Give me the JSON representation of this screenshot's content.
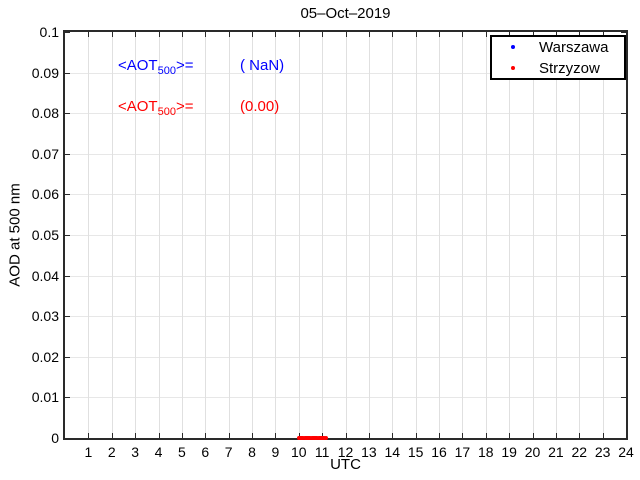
{
  "chart_data": {
    "type": "scatter",
    "title": "05–Oct–2019",
    "xlabel": "UTC",
    "ylabel": "AOD at 500 nm",
    "xlim": [
      0,
      24
    ],
    "ylim": [
      0,
      0.1
    ],
    "xticks": [
      1,
      2,
      3,
      4,
      5,
      6,
      7,
      8,
      9,
      10,
      11,
      12,
      13,
      14,
      15,
      16,
      17,
      18,
      19,
      20,
      21,
      22,
      23,
      24
    ],
    "yticks": [
      0,
      0.01,
      0.02,
      0.03,
      0.04,
      0.05,
      0.06,
      0.07,
      0.08,
      0.09,
      0.1
    ],
    "ytick_labels": [
      "0",
      "0.01",
      "0.02",
      "0.03",
      "0.04",
      "0.05",
      "0.06",
      "0.07",
      "0.08",
      "0.09",
      "0.1"
    ],
    "grid": true,
    "legend_position": "top-right",
    "series": [
      {
        "name": "Warszawa",
        "color": "#0000ff",
        "marker": "dot",
        "x": [],
        "y": [],
        "mean_aot500": "NaN"
      },
      {
        "name": "Strzyzow",
        "color": "#ff0000",
        "marker": "dot",
        "x": [
          10.0,
          10.05,
          10.1,
          10.15,
          10.2,
          10.25,
          10.3,
          10.35,
          10.4,
          10.45,
          10.5,
          10.55,
          10.6,
          10.65,
          10.7,
          10.75,
          10.8,
          10.85,
          10.9,
          10.95,
          11.0,
          11.05,
          11.1,
          11.15
        ],
        "y": 0,
        "mean_aot500": "0.00"
      }
    ]
  },
  "annotations": {
    "warszawa": {
      "prefix": "<AOT",
      "sub": "500",
      "suffix": ">=",
      "value": "( NaN)",
      "color": "#0000ff"
    },
    "strzyzow": {
      "prefix": "<AOT",
      "sub": "500",
      "suffix": ">=",
      "value": "(0.00)",
      "color": "#ff0000"
    }
  },
  "legend": {
    "entries": [
      {
        "label": "Warszawa",
        "color": "#0000ff"
      },
      {
        "label": "Strzyzow",
        "color": "#ff0000"
      }
    ]
  },
  "colors": {
    "axis": "#2a2a2a",
    "grid_vertical": "#e0e0e0",
    "grid_horizontal": "#e7e7e7",
    "background": "#ffffff"
  }
}
